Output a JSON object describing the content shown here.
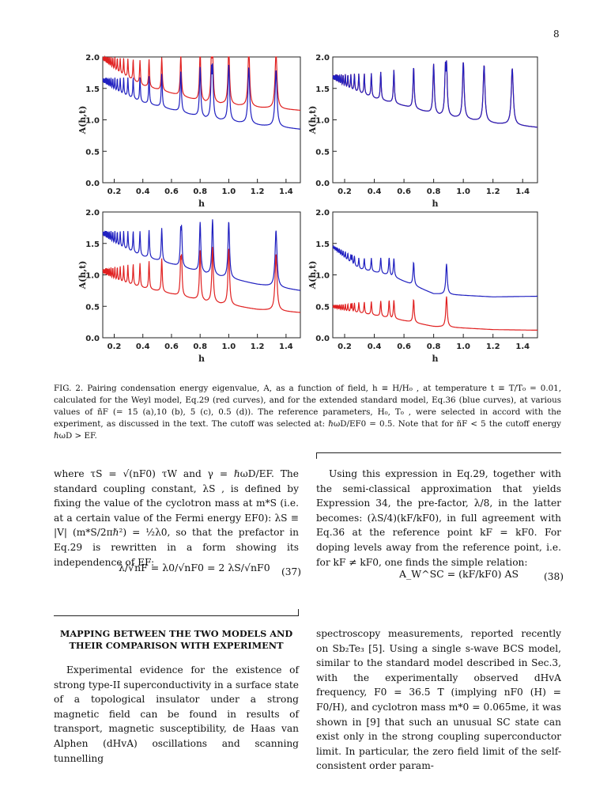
{
  "page_number": "8",
  "figure": {
    "axis_ylabel": "A(h,t)",
    "axis_xlabel": "h",
    "x_ticks": [
      "0.2",
      "0.4",
      "0.6",
      "0.8",
      "1.0",
      "1.2",
      "1.4"
    ],
    "y_ticks": [
      "0.0",
      "0.5",
      "1.0",
      "1.5",
      "2.0"
    ],
    "colors": {
      "weyl": "#e02020",
      "standard": "#2020c0"
    }
  },
  "chart_data": [
    {
      "type": "line",
      "panel": "a",
      "x_range": [
        0.12,
        1.5
      ],
      "ylim": [
        0,
        2
      ],
      "series": [
        {
          "name": "",
          "color": "red",
          "baseline_x": [
            0.12,
            0.4,
            0.8,
            1.2,
            1.5
          ],
          "baseline_y": [
            1.9,
            1.55,
            1.3,
            1.2,
            1.15
          ],
          "peaks_x": [
            0.8,
            0.88,
            1.0,
            1.14,
            1.33
          ]
        },
        {
          "name": "",
          "color": "blue",
          "baseline_x": [
            0.12,
            0.4,
            0.8,
            1.2,
            1.5
          ],
          "baseline_y": [
            1.55,
            1.28,
            1.05,
            0.92,
            0.85
          ],
          "peaks_x": [
            0.8,
            0.88,
            1.0,
            1.14,
            1.33
          ]
        }
      ]
    },
    {
      "type": "line",
      "panel": "b",
      "x_range": [
        0.12,
        1.5
      ],
      "ylim": [
        0,
        2
      ],
      "series": [
        {
          "name": "",
          "color": "red",
          "baseline_x": [
            0.12,
            0.4,
            0.8,
            1.2,
            1.5
          ],
          "baseline_y": [
            1.6,
            1.35,
            1.1,
            0.95,
            0.88
          ],
          "peaks_x": [
            0.8,
            0.88,
            1.0,
            1.14,
            1.33
          ]
        },
        {
          "name": "",
          "color": "blue",
          "baseline_x": [
            0.12,
            0.4,
            0.8,
            1.2,
            1.5
          ],
          "baseline_y": [
            1.6,
            1.35,
            1.1,
            0.95,
            0.88
          ],
          "peaks_x": [
            0.8,
            0.88,
            1.0,
            1.14,
            1.33
          ]
        }
      ]
    },
    {
      "type": "line",
      "panel": "c",
      "x_range": [
        0.12,
        1.5
      ],
      "ylim": [
        0,
        2
      ],
      "series": [
        {
          "name": "",
          "color": "blue",
          "baseline_x": [
            0.12,
            0.4,
            0.8,
            1.2,
            1.5
          ],
          "baseline_y": [
            1.58,
            1.3,
            1.05,
            0.85,
            0.75
          ],
          "peaks_x": [
            0.67,
            0.8,
            1.0,
            1.33
          ]
        },
        {
          "name": "",
          "color": "red",
          "baseline_x": [
            0.12,
            0.4,
            0.8,
            1.2,
            1.5
          ],
          "baseline_y": [
            0.98,
            0.8,
            0.6,
            0.45,
            0.4
          ],
          "peaks_x": [
            0.67,
            0.8,
            1.0,
            1.33
          ]
        }
      ]
    },
    {
      "type": "line",
      "panel": "d",
      "x_range": [
        0.12,
        1.5
      ],
      "ylim": [
        0,
        2
      ],
      "series": [
        {
          "name": "",
          "color": "blue",
          "baseline_x": [
            0.12,
            0.3,
            0.5,
            0.8,
            1.2,
            1.5
          ],
          "baseline_y": [
            1.4,
            1.1,
            1.0,
            0.7,
            0.65,
            0.66
          ],
          "peaks_x": [
            0.25,
            0.5
          ]
        },
        {
          "name": "",
          "color": "red",
          "baseline_x": [
            0.12,
            0.3,
            0.5,
            0.8,
            1.2,
            1.5
          ],
          "baseline_y": [
            0.45,
            0.4,
            0.32,
            0.18,
            0.13,
            0.12
          ],
          "peaks_x": [
            0.25,
            0.5
          ]
        }
      ]
    }
  ],
  "caption": {
    "label": "FIG. 2.",
    "text": "Pairing condensation energy eigenvalue, A, as a function of field, h ≡ H/H₀ , at temperature t ≡ T/T₀ = 0.01, calculated for the Weyl model, Eq.29 (red curves), and for the extended standard model, Eq.36 (blue curves), at various values of ñF (= 15 (a),10 (b), 5 (c), 0.5 (d)). The reference parameters, H₀, T₀ , were selected in accord with the experiment, as discussed in the text. The cutoff was selected at: ℏωD/EF0 = 0.5. Note that for ñF < 5 the cutoff energy ℏωD > EF."
  },
  "left_column": {
    "para1": "where τS = √(nF0) τW and γ = ℏωD/EF. The standard coupling constant, λS , is defined by fixing the value of the cyclotron mass at m*S (i.e. at a certain value of the Fermi energy EF0): λS ≡ |V| (m*S/2πℏ²) = ½λ0, so that the prefactor in Eq.29 is rewritten in a form showing its independence of EF:",
    "eq37": "λ/√nF = λ0/√nF0 = 2 λS/√nF0",
    "eq37_num": "(37)",
    "section_title": "MAPPING BETWEEN THE TWO MODELS AND THEIR COMPARISON WITH EXPERIMENT",
    "para2": "Experimental evidence for the existence of strong type-II superconductivity in a surface state of a topological insulator under a strong magnetic field can be found in results of transport, magnetic susceptibility, de Haas van Alphen (dHvA) oscillations and scanning tunnelling"
  },
  "right_column": {
    "para1": "Using this expression in Eq.29, together with the semi-classical approximation that yields Expression 34, the pre-factor, λ/8, in the latter becomes: (λS/4)(kF/kF0), in full agreement with Eq.36 at the reference point kF = kF0. For doping levels away from the reference point, i.e. for kF ≠ kF0, one finds the simple relation:",
    "eq38": "A_W^SC = (kF/kF0) AS",
    "eq38_num": "(38)",
    "para2": "spectroscopy measurements, reported recently on Sb₂Te₃ [5]. Using a single s-wave BCS model, similar to the standard model described in Sec.3, with the experimentally observed dHvA frequency, F0 = 36.5 T (implying nF0 (H) = F0/H), and cyclotron mass m*0 = 0.065me, it was shown in [9] that such an unusual SC state can exist only in the strong coupling superconductor limit. In particular, the zero field limit of the self-consistent order param-"
  }
}
